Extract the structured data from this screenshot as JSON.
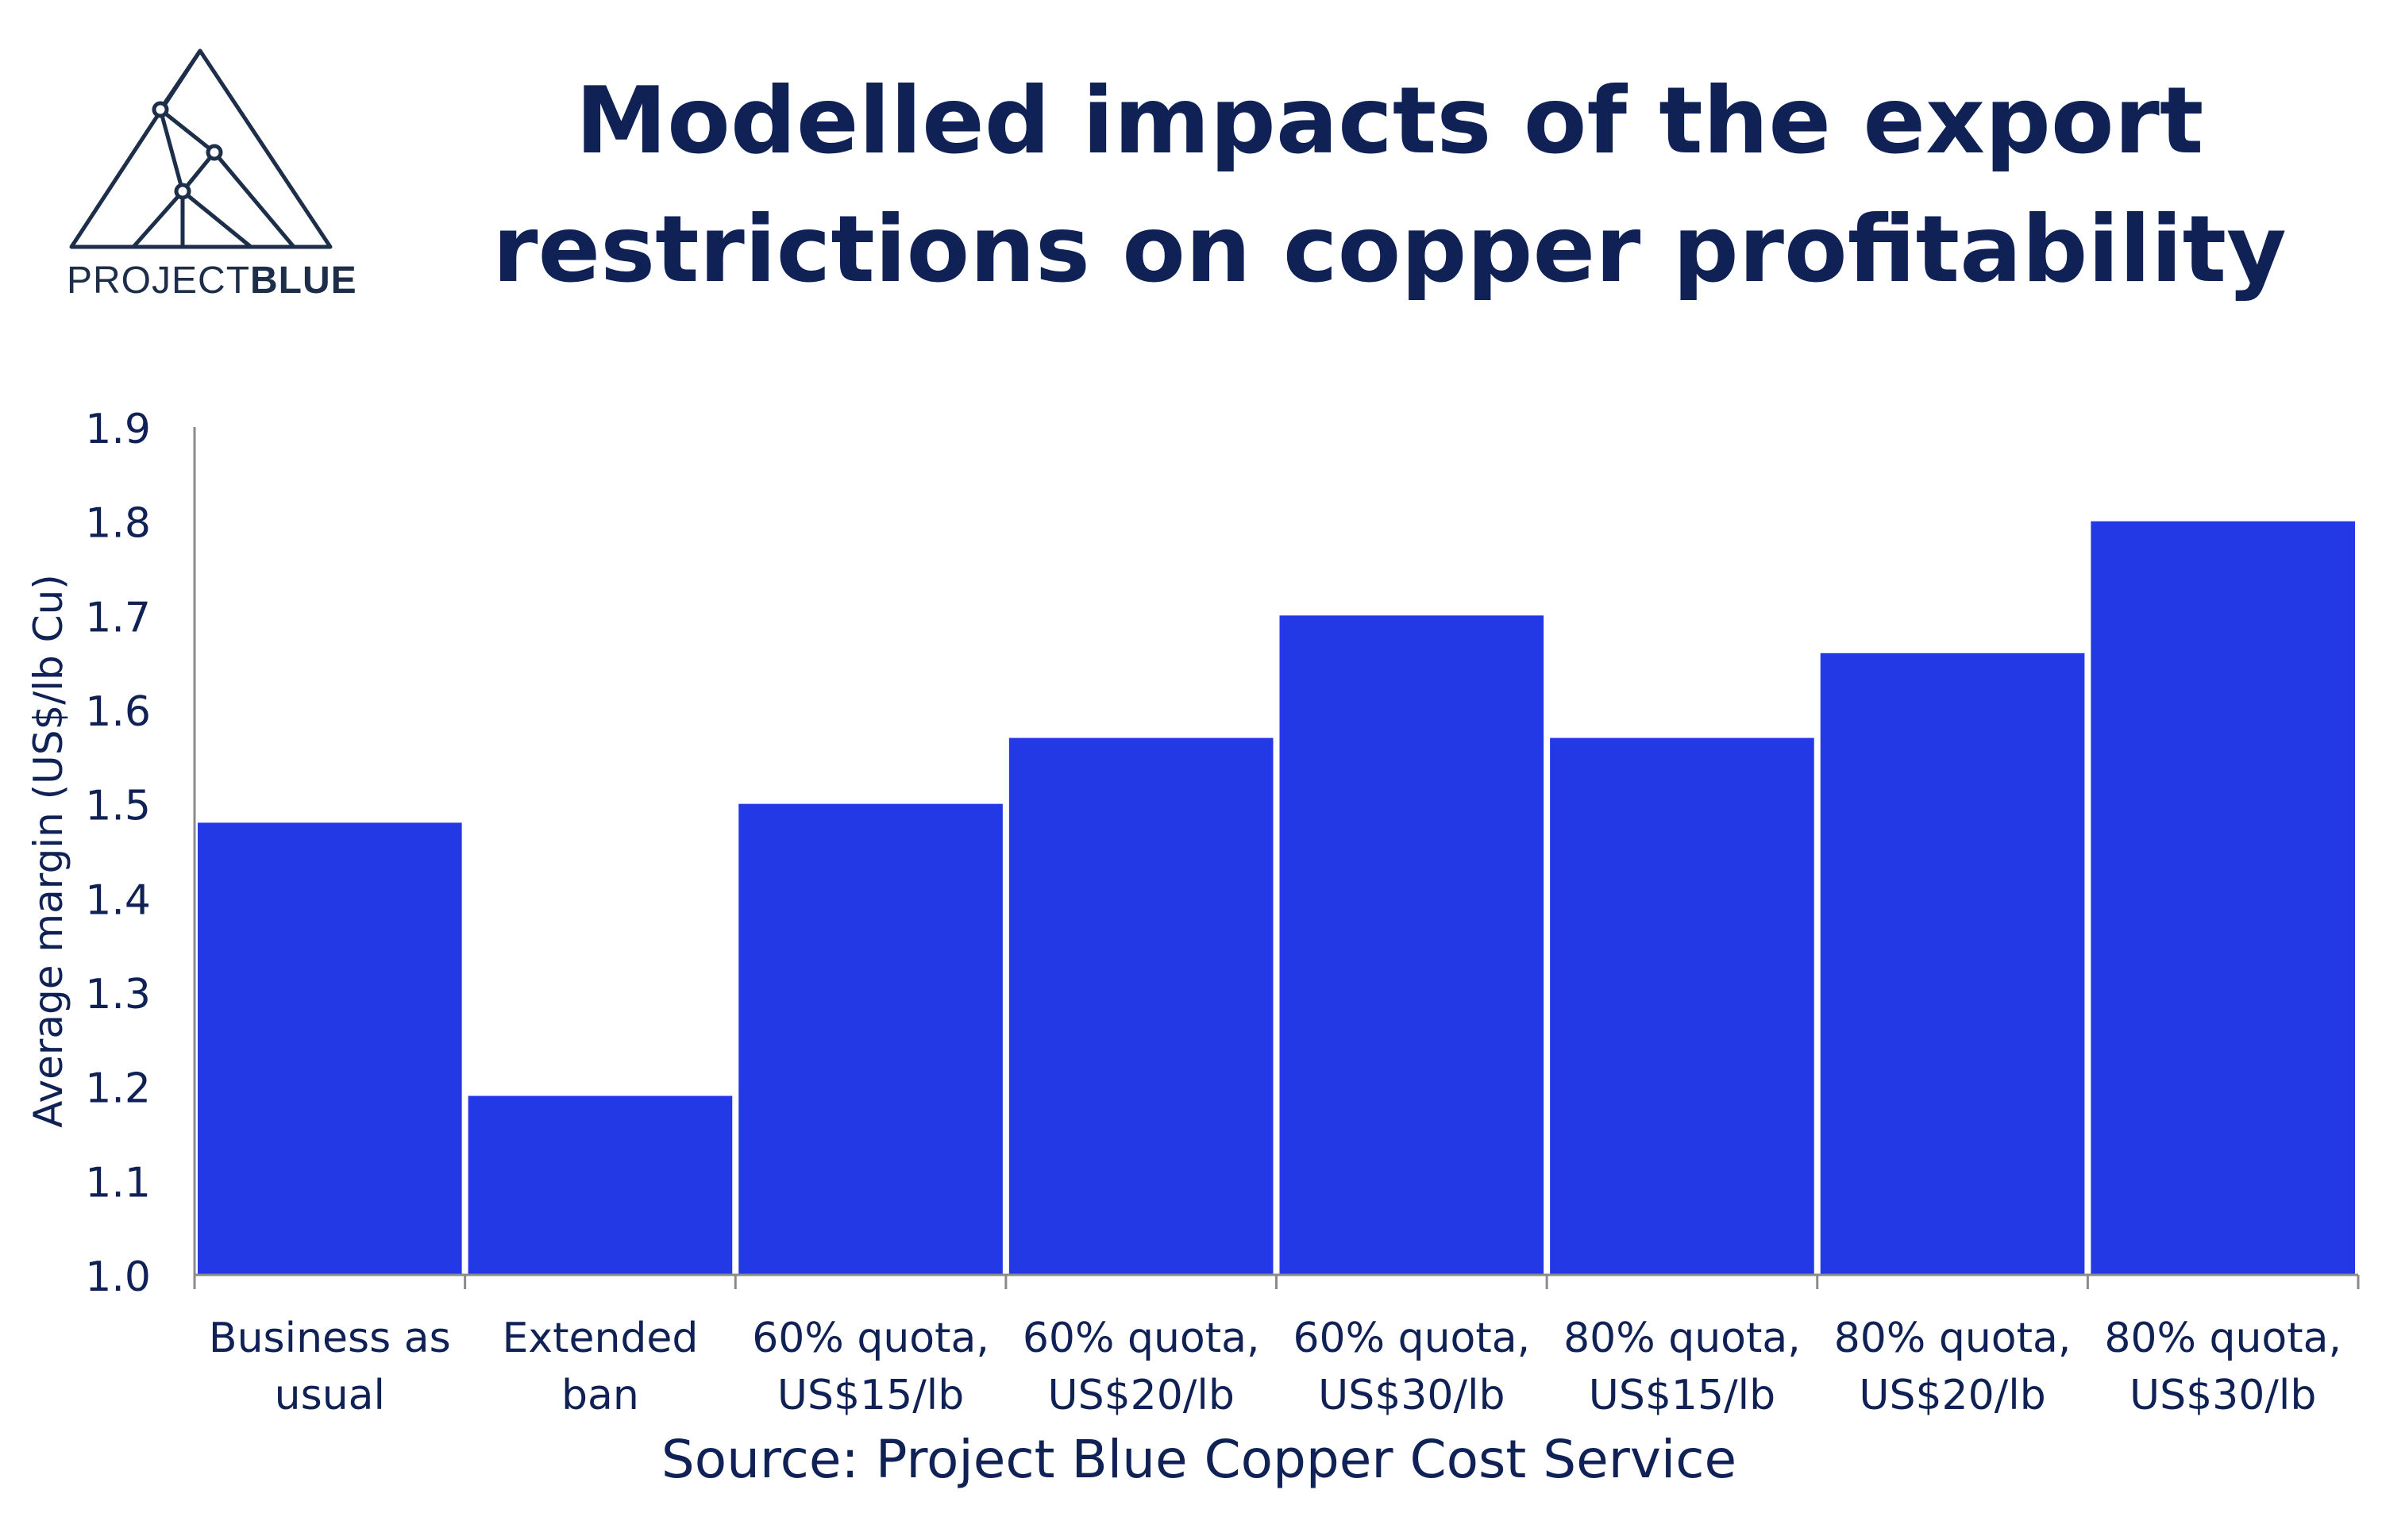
{
  "logo": {
    "text_light": "PROJECT",
    "text_bold": "BLUE"
  },
  "title_lines": [
    "Modelled impacts of the export",
    "restrictions on copper profitability"
  ],
  "source": "Source: Project Blue Copper Cost Service",
  "colors": {
    "bar": "#2339e5",
    "text": "#0f2155",
    "axis": "#8a8a8a"
  },
  "chart_data": {
    "type": "bar",
    "categories": [
      [
        "Business as",
        "usual"
      ],
      [
        "Extended",
        "ban"
      ],
      [
        "60% quota,",
        "US$15/lb"
      ],
      [
        "60% quota,",
        "US$20/lb"
      ],
      [
        "60% quota,",
        "US$30/lb"
      ],
      [
        "80% quota,",
        "US$15/lb"
      ],
      [
        "80% quota,",
        "US$20/lb"
      ],
      [
        "80% quota,",
        "US$30/lb"
      ]
    ],
    "values": [
      1.48,
      1.19,
      1.5,
      1.57,
      1.7,
      1.57,
      1.66,
      1.8
    ],
    "ylabel": "Average margin (US$/lb Cu)",
    "ylim": [
      1.0,
      1.9
    ],
    "yticks": [
      "1.0",
      "1.1",
      "1.2",
      "1.3",
      "1.4",
      "1.5",
      "1.6",
      "1.7",
      "1.8",
      "1.9"
    ],
    "grid": false,
    "legend": "none"
  }
}
